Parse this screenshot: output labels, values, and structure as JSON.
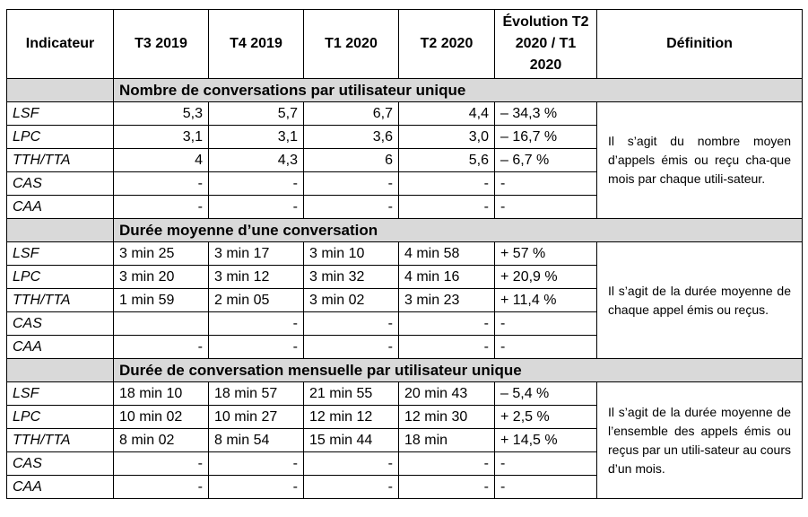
{
  "headers": [
    "Indicateur",
    "T3 2019",
    "T4 2019",
    "T1 2020",
    "T2 2020",
    "Évolution T2 2020 / T1 2020",
    "Définition"
  ],
  "sections": [
    {
      "title": "Nombre de conversations par utilisateur unique",
      "definition": "Il s’agit du nombre moyen d’appels émis ou reçu cha-que mois par chaque utili-sateur.",
      "rows": [
        [
          "LSF",
          "5,3",
          "5,7",
          "6,7",
          "4,4",
          "– 34,3 %"
        ],
        [
          "LPC",
          "3,1",
          "3,1",
          "3,6",
          "3,0",
          "– 16,7 %"
        ],
        [
          "TTH/TTA",
          "4",
          "4,3",
          "6",
          "5,6",
          "– 6,7 %"
        ],
        [
          "CAS",
          "-",
          "-",
          "-",
          "-",
          "-"
        ],
        [
          "CAA",
          "-",
          "-",
          "-",
          "-",
          "-"
        ]
      ]
    },
    {
      "title": "Durée moyenne d’une conversation",
      "definition": "Il s’agit de la durée moyenne de chaque appel émis ou reçus.",
      "rows": [
        [
          "LSF",
          "3 min 25",
          "3 min 17",
          "3 min 10",
          "4 min 58",
          "+ 57 %"
        ],
        [
          "LPC",
          "3 min 20",
          "3 min 12",
          "3 min 32",
          "4 min 16",
          "+ 20,9 %"
        ],
        [
          "TTH/TTA",
          "1 min 59",
          "2 min 05",
          "3 min 02",
          "3 min 23",
          "+ 11,4 %"
        ],
        [
          "CAS",
          "",
          "-",
          "-",
          "-",
          "-"
        ],
        [
          "CAA",
          "-",
          "-",
          "-",
          "-",
          "-"
        ]
      ]
    },
    {
      "title": "Durée de conversation mensuelle par utilisateur unique",
      "definition": "Il s’agit de la durée moyenne de l’ensemble des appels émis ou reçus par un utili-sateur au cours d’un mois.",
      "rows": [
        [
          "LSF",
          "18 min 10",
          "18 min 57",
          "21 min 55",
          "20 min 43",
          "– 5,4 %"
        ],
        [
          "LPC",
          "10 min 02",
          "10 min 27",
          "12 min 12",
          "12 min 30",
          "+ 2,5 %"
        ],
        [
          "TTH/TTA",
          "8 min 02",
          "8 min 54",
          "15 min 44",
          "18 min",
          "+ 14,5 %"
        ],
        [
          "CAS",
          "-",
          "-",
          "-",
          "-",
          "-"
        ],
        [
          "CAA",
          "-",
          "-",
          "-",
          "-",
          "-"
        ]
      ]
    }
  ]
}
